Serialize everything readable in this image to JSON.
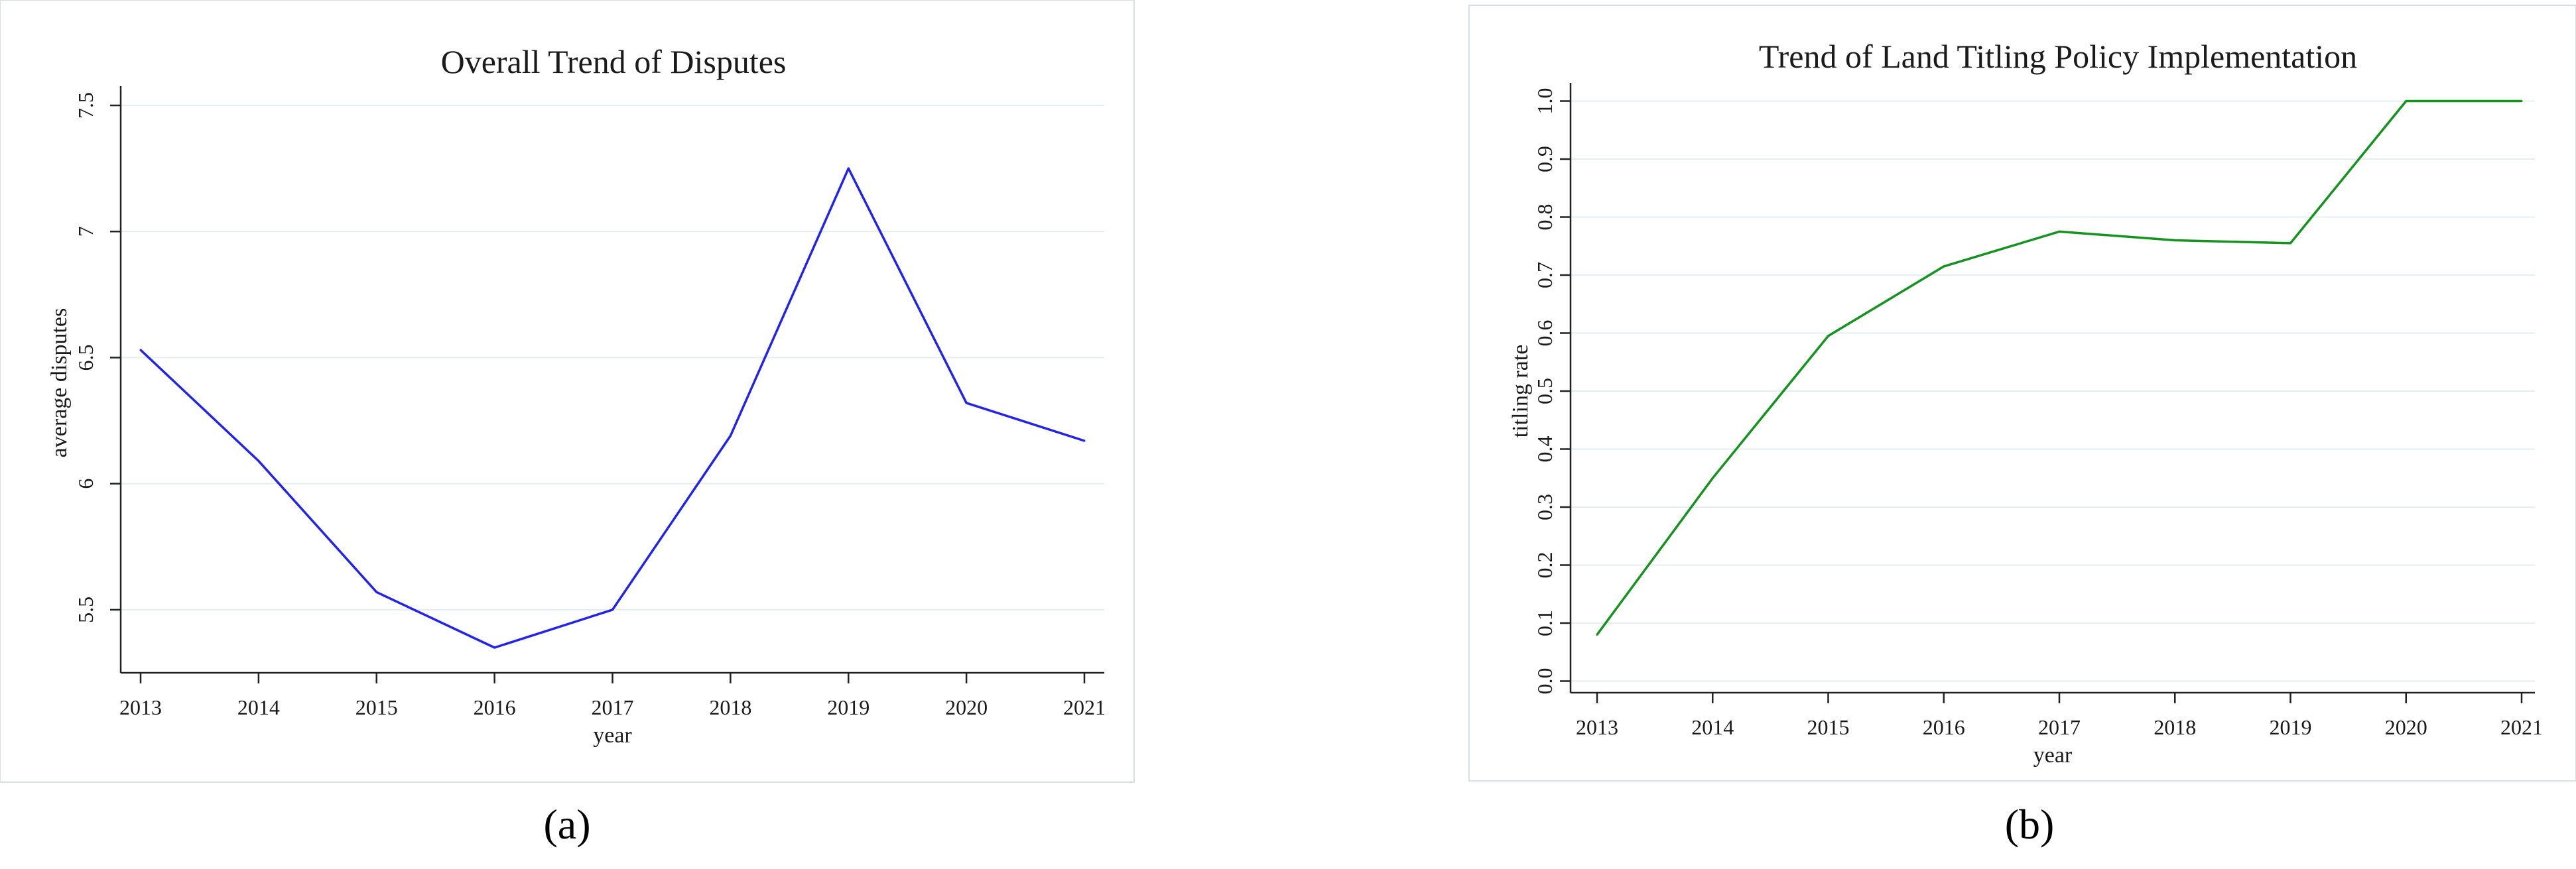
{
  "figure": {
    "panel_labels": [
      "(a)",
      "(b)"
    ]
  },
  "chart_data": [
    {
      "type": "line",
      "title": "Overall Trend of Disputes",
      "xlabel": "year",
      "ylabel": "average disputes",
      "x": [
        2013,
        2014,
        2015,
        2016,
        2017,
        2018,
        2019,
        2020,
        2021
      ],
      "series": [
        {
          "values": [
            6.53,
            6.09,
            5.57,
            5.35,
            5.5,
            6.19,
            7.25,
            6.32,
            6.17
          ],
          "color": "#2222ee"
        }
      ],
      "ylim": [
        5.25,
        7.55
      ],
      "yticks": [
        5.5,
        6,
        6.5,
        7,
        7.5
      ],
      "ytick_labels": [
        "5.5",
        "6",
        "6.5",
        "7",
        "7.5"
      ],
      "ytick_rotated": true,
      "grid": true,
      "legend": "none"
    },
    {
      "type": "line",
      "title": "Trend of Land Titling Policy Implementation",
      "xlabel": "year",
      "ylabel": "titling rate",
      "x": [
        2013,
        2014,
        2015,
        2016,
        2017,
        2018,
        2019,
        2020,
        2021
      ],
      "series": [
        {
          "values": [
            0.08,
            0.35,
            0.595,
            0.715,
            0.775,
            0.76,
            0.755,
            1.0,
            1.0
          ],
          "color": "#14931e"
        }
      ],
      "ylim": [
        -0.02,
        1.02
      ],
      "yticks": [
        0,
        0.1,
        0.2,
        0.3,
        0.4,
        0.5,
        0.6,
        0.7,
        0.8,
        0.9,
        1.0
      ],
      "ytick_labels": [
        "0.0",
        "0.1",
        "0.2",
        "0.3",
        "0.4",
        "0.5",
        "0.6",
        "0.7",
        "0.8",
        "0.9",
        "1.0"
      ],
      "ytick_rotated": true,
      "grid": true,
      "legend": "none"
    }
  ]
}
